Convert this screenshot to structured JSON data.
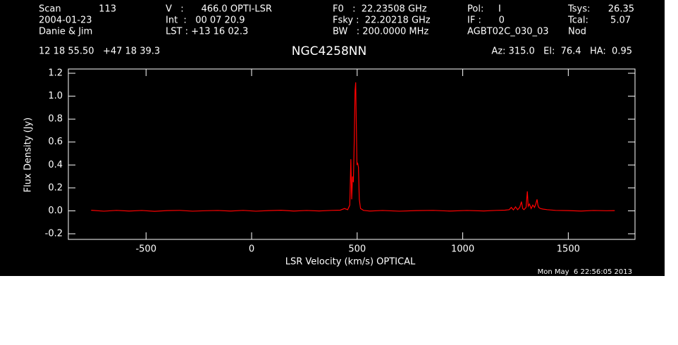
{
  "chart_data": {
    "type": "line",
    "title": "NGC4258NN",
    "header": [
      "Scan",
      "113",
      "2004-01-23",
      "Danie & Jim",
      "V   :      466.0 OPTI-LSR",
      "Int  :   00 07 20.9",
      "LST : +13 16 02.3",
      "F0   :  22.23508 GHz",
      "Fsky :  22.20218 GHz",
      "BW   : 200.0000 MHz",
      "Pol:     I",
      "IF :      0",
      "AGBT02C_030_03",
      "Tsys:",
      "26.35",
      "Tcal:",
      "5.07",
      "Nod",
      "12 18 55.50   +47 18 39.3",
      "Az: 315.0   El:  76.4   HA:  0.95"
    ],
    "xlabel": "LSR Velocity (km/s) OPTICAL",
    "ylabel": "Flux Density (Jy)",
    "date": "Mon May  6 22:56:05 2013",
    "color": "#ff0000",
    "xlim": [
      -868,
      1816
    ],
    "ylim": [
      -0.249,
      1.237
    ],
    "xticks": [
      -500,
      0,
      500,
      1000,
      1500
    ],
    "yticks": [
      -0.2,
      {
        "value": 0,
        "label": "0.0"
      },
      0.2,
      0.4,
      0.6,
      0.8,
      {
        "value": 1,
        "label": "1.0"
      },
      1.2
    ],
    "x": [
      -760,
      -700,
      -640,
      -580,
      -520,
      -460,
      -400,
      -340,
      -280,
      -220,
      -160,
      -100,
      -40,
      20,
      80,
      140,
      200,
      260,
      320,
      380,
      420,
      440,
      455,
      465,
      470,
      474,
      478,
      482,
      486,
      490,
      493,
      496,
      499,
      502,
      506,
      510,
      516,
      530,
      560,
      620,
      700,
      780,
      860,
      940,
      1020,
      1100,
      1160,
      1200,
      1220,
      1230,
      1240,
      1250,
      1260,
      1270,
      1278,
      1284,
      1290,
      1300,
      1306,
      1310,
      1316,
      1324,
      1332,
      1340,
      1346,
      1352,
      1356,
      1360,
      1368,
      1380,
      1400,
      1440,
      1500,
      1560,
      1620,
      1680,
      1720
    ],
    "values": [
      0.005,
      -0.003,
      0.004,
      -0.002,
      0.003,
      -0.004,
      0.002,
      0.004,
      -0.003,
      0.001,
      0.003,
      -0.002,
      0.004,
      -0.003,
      0.002,
      0.005,
      -0.002,
      0.003,
      -0.001,
      0.004,
      0.006,
      0.02,
      0.01,
      0.05,
      0.45,
      0.1,
      0.3,
      0.25,
      0.6,
      1.05,
      1.12,
      0.75,
      0.4,
      0.42,
      0.38,
      0.1,
      0.02,
      0.004,
      -0.002,
      0.003,
      -0.003,
      0.002,
      0.004,
      -0.002,
      0.003,
      -0.001,
      0.004,
      0.006,
      0.01,
      0.03,
      0.008,
      0.035,
      0.01,
      0.03,
      0.08,
      0.02,
      0.01,
      0.03,
      0.17,
      0.04,
      0.06,
      0.02,
      0.05,
      0.03,
      0.06,
      0.1,
      0.05,
      0.03,
      0.02,
      0.015,
      0.01,
      0.004,
      0.002,
      -0.002,
      0.003,
      0.001,
      0.002
    ]
  }
}
